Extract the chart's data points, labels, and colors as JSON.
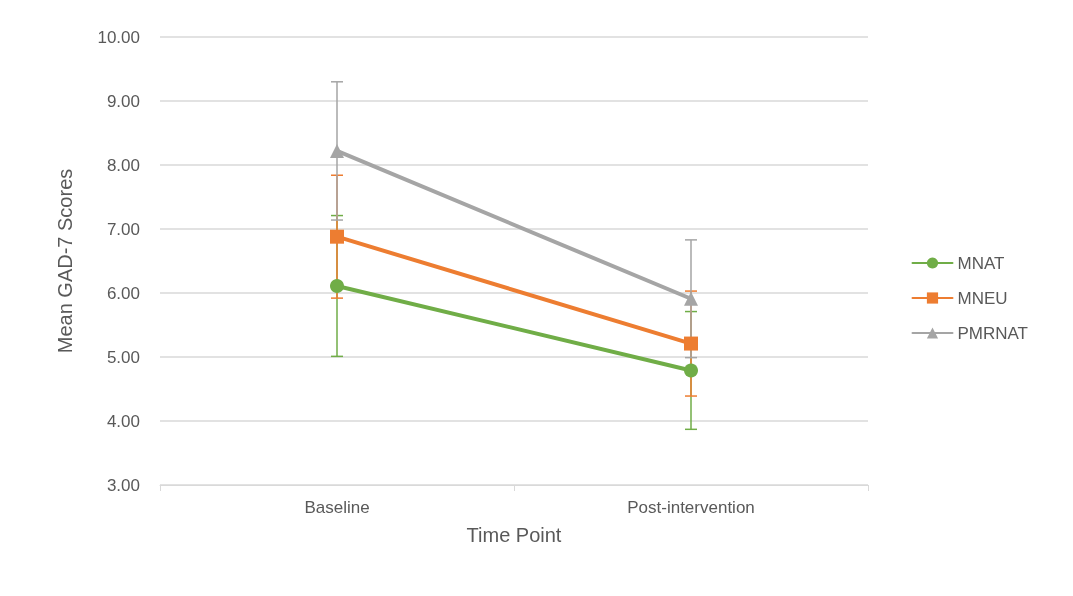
{
  "chart_data": {
    "type": "line",
    "xlabel": "Time Point",
    "ylabel": "Mean GAD-7 Scores",
    "categories": [
      "Baseline",
      "Post-intervention"
    ],
    "series": [
      {
        "name": "MNAT",
        "color": "#70ad47",
        "marker": "circle",
        "values": [
          6.11,
          4.79
        ],
        "errors": [
          1.1,
          0.92
        ]
      },
      {
        "name": "MNEU",
        "color": "#ed7d31",
        "marker": "square",
        "values": [
          6.88,
          5.21
        ],
        "errors": [
          0.96,
          0.82
        ]
      },
      {
        "name": "PMRNAT",
        "color": "#a5a5a5",
        "marker": "triangle",
        "values": [
          8.22,
          5.91
        ],
        "errors": [
          1.08,
          0.92
        ]
      }
    ],
    "ylim": [
      3,
      10
    ],
    "yticks": [
      {
        "value": 3,
        "label": "3.00"
      },
      {
        "value": 4,
        "label": "4.00"
      },
      {
        "value": 5,
        "label": "5.00"
      },
      {
        "value": 6,
        "label": "6.00"
      },
      {
        "value": 7,
        "label": "7.00"
      },
      {
        "value": 8,
        "label": "8.00"
      },
      {
        "value": 9,
        "label": "9.00"
      },
      {
        "value": 10,
        "label": "10.00"
      }
    ],
    "grid": "y",
    "legend": "right",
    "line_style": "solid"
  }
}
